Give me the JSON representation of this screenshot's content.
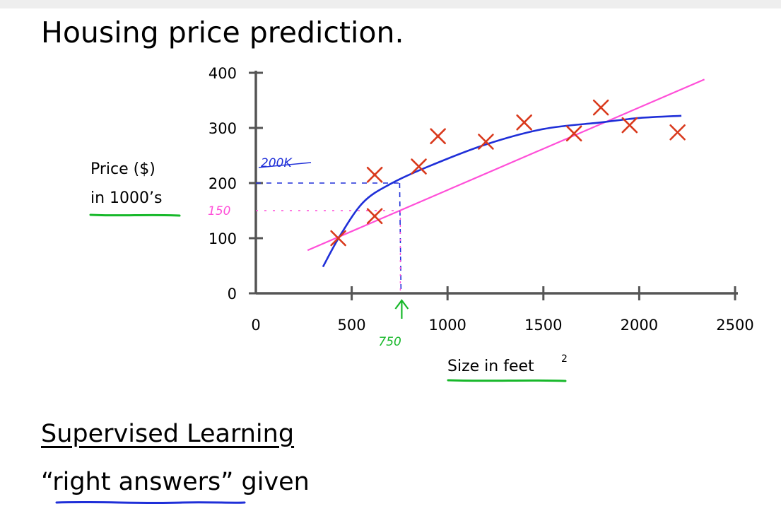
{
  "slide": {
    "title": "Housing price prediction.",
    "subtitle": "Supervised Learning",
    "note": "“right answers” given"
  },
  "chart_data": {
    "type": "scatter",
    "title": "",
    "xlabel": "Size in feet",
    "xlabel_sup": "2",
    "ylabel_line1": "Price ($)",
    "ylabel_line2": "in 1000’s",
    "xlim": [
      0,
      2500
    ],
    "ylim": [
      0,
      400
    ],
    "x_ticks": [
      0,
      500,
      1000,
      1500,
      2000,
      2500
    ],
    "y_ticks": [
      0,
      100,
      200,
      300,
      400
    ],
    "grid": false,
    "legend": "none",
    "points": [
      {
        "x": 430,
        "y": 100
      },
      {
        "x": 620,
        "y": 140
      },
      {
        "x": 620,
        "y": 215
      },
      {
        "x": 850,
        "y": 230
      },
      {
        "x": 950,
        "y": 285
      },
      {
        "x": 1200,
        "y": 275
      },
      {
        "x": 1400,
        "y": 310
      },
      {
        "x": 1660,
        "y": 290
      },
      {
        "x": 1800,
        "y": 337
      },
      {
        "x": 1950,
        "y": 305
      },
      {
        "x": 2200,
        "y": 292
      }
    ],
    "linear_fit": [
      [
        270,
        78
      ],
      [
        2340,
        388
      ]
    ],
    "quadratic_fit": [
      [
        350,
        48
      ],
      [
        440,
        105
      ],
      [
        560,
        165
      ],
      [
        700,
        198
      ],
      [
        900,
        230
      ],
      [
        1200,
        270
      ],
      [
        1500,
        298
      ],
      [
        1800,
        310
      ],
      [
        2000,
        318
      ],
      [
        2220,
        322
      ]
    ],
    "annotations": {
      "x_query": {
        "x": 750,
        "label": "750"
      },
      "y_quadratic": {
        "y": 200,
        "label": "200K"
      },
      "y_linear": {
        "y": 150,
        "label": "150"
      }
    },
    "colors": {
      "points": "#d9391c",
      "linear_fit": "#ff4fd8",
      "quadratic_fit": "#1f2fd8",
      "query": "#17b82a",
      "axis": "#555555",
      "underline": "#17b82a",
      "note_underline": "#1f2fd8"
    }
  }
}
